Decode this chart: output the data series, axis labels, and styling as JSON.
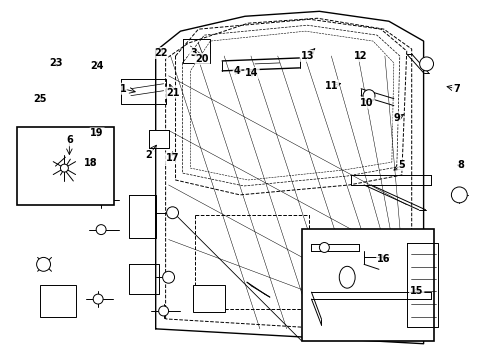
{
  "bg_color": "#ffffff",
  "line_color": "#000000",
  "label_color": "#000000",
  "figsize": [
    4.89,
    3.6
  ],
  "dpi": 100,
  "annotations": [
    [
      1,
      122,
      272,
      138,
      268
    ],
    [
      2,
      148,
      205,
      158,
      218
    ],
    [
      3,
      193,
      308,
      200,
      302
    ],
    [
      4,
      237,
      290,
      243,
      292
    ],
    [
      5,
      403,
      195,
      392,
      188
    ],
    [
      6,
      68,
      220,
      68,
      202
    ],
    [
      7,
      458,
      272,
      445,
      275
    ],
    [
      8,
      462,
      195,
      456,
      195
    ],
    [
      9,
      398,
      242,
      408,
      248
    ],
    [
      10,
      368,
      258,
      378,
      262
    ],
    [
      11,
      332,
      275,
      345,
      278
    ],
    [
      12,
      362,
      305,
      360,
      298
    ],
    [
      13,
      308,
      305,
      318,
      315
    ],
    [
      14,
      252,
      288,
      258,
      292
    ],
    [
      15,
      418,
      68,
      422,
      75
    ],
    [
      16,
      385,
      100,
      382,
      108
    ],
    [
      17,
      172,
      202,
      172,
      212
    ],
    [
      18,
      90,
      197,
      98,
      200
    ],
    [
      19,
      96,
      227,
      98,
      230
    ],
    [
      20,
      202,
      302,
      210,
      308
    ],
    [
      21,
      172,
      268,
      168,
      280
    ],
    [
      22,
      160,
      308,
      162,
      312
    ],
    [
      23,
      55,
      298,
      52,
      300
    ],
    [
      24,
      96,
      295,
      96,
      300
    ],
    [
      25,
      38,
      262,
      42,
      265
    ]
  ]
}
